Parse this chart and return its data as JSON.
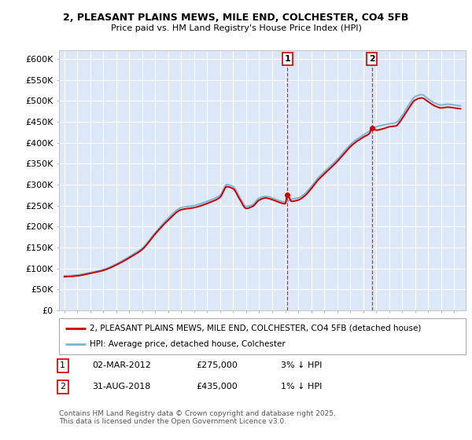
{
  "title_line1": "2, PLEASANT PLAINS MEWS, MILE END, COLCHESTER, CO4 5FB",
  "title_line2": "Price paid vs. HM Land Registry's House Price Index (HPI)",
  "plot_bg_color": "#dce8f8",
  "ylim": [
    0,
    620000
  ],
  "yticks": [
    0,
    50000,
    100000,
    150000,
    200000,
    250000,
    300000,
    350000,
    400000,
    450000,
    500000,
    550000,
    600000
  ],
  "sale1_x": 2012.16,
  "sale1_price": 275000,
  "sale2_x": 2018.66,
  "sale2_price": 435000,
  "legend_line1": "2, PLEASANT PLAINS MEWS, MILE END, COLCHESTER, CO4 5FB (detached house)",
  "legend_line2": "HPI: Average price, detached house, Colchester",
  "footnote1_label": "1",
  "footnote1_date": "02-MAR-2012",
  "footnote1_price": "£275,000",
  "footnote1_hpi": "3% ↓ HPI",
  "footnote2_label": "2",
  "footnote2_date": "31-AUG-2018",
  "footnote2_price": "£435,000",
  "footnote2_hpi": "1% ↓ HPI",
  "copyright": "Contains HM Land Registry data © Crown copyright and database right 2025.\nThis data is licensed under the Open Government Licence v3.0.",
  "line_color_red": "#cc0000",
  "line_color_blue": "#7fb3d3",
  "grid_color": "#ffffff",
  "spine_color": "#bbbbbb"
}
